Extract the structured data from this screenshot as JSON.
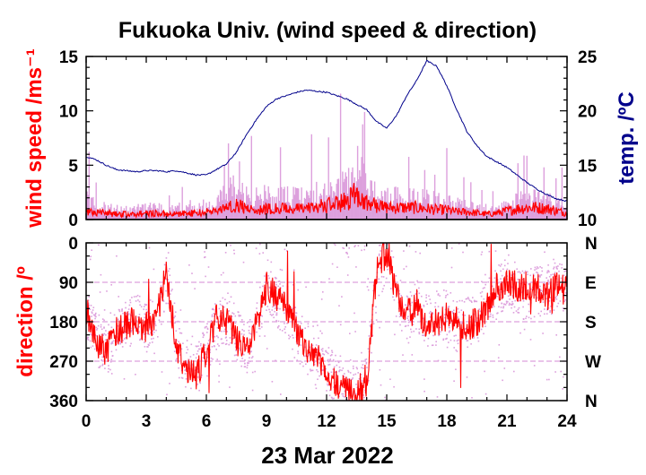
{
  "title": "Fukuoka Univ. (wind speed & direction)",
  "date_label": "23 Mar 2022",
  "colors": {
    "wind_gust": "#dda0dd",
    "wind_mean": "#ff0000",
    "temperature": "#00008b",
    "direction_gust": "#dda0dd",
    "direction_mean": "#ff0000",
    "axis": "#000000"
  },
  "chart_data": [
    {
      "type": "line",
      "panel": "wind-speed-temperature",
      "title": "Fukuoka Univ. (wind speed & direction)",
      "xlabel": "23 Mar 2022",
      "ylabel": "wind speed /ms⁻¹",
      "y2label": "temp. /ºC",
      "xlim": [
        0,
        24
      ],
      "ylim": [
        0,
        15
      ],
      "y2lim": [
        10,
        25
      ],
      "xticks": [
        "0",
        "3",
        "6",
        "9",
        "12",
        "15",
        "18",
        "21",
        "24"
      ],
      "yticks": [
        "0",
        "5",
        "10",
        "15"
      ],
      "y2ticks": [
        "10",
        "15",
        "20",
        "25"
      ],
      "grid": false,
      "series": [
        {
          "key": "temperature",
          "axis": "right",
          "x": [
            0,
            0.5,
            1,
            1.5,
            2,
            2.5,
            3,
            3.5,
            4,
            4.5,
            5,
            5.5,
            6,
            6.5,
            7,
            7.5,
            8,
            8.5,
            9,
            9.5,
            10,
            10.5,
            11,
            11.5,
            12,
            12.5,
            13,
            13.5,
            14,
            14.5,
            15,
            15.5,
            16,
            16.5,
            17,
            17.5,
            18,
            18.5,
            19,
            19.5,
            20,
            20.5,
            21,
            21.5,
            22,
            22.5,
            23,
            23.5,
            24
          ],
          "values": [
            15.8,
            15.5,
            15.0,
            14.6,
            14.5,
            14.4,
            14.5,
            14.5,
            14.4,
            14.5,
            14.3,
            14.1,
            14.1,
            14.6,
            15.1,
            16.2,
            17.8,
            19.2,
            20.4,
            21.1,
            21.4,
            21.7,
            21.9,
            21.8,
            21.7,
            21.4,
            21.1,
            20.6,
            20.1,
            19.0,
            18.4,
            19.6,
            21.4,
            22.8,
            24.6,
            24.1,
            22.3,
            20.1,
            18.1,
            16.8,
            15.8,
            15.3,
            14.8,
            14.1,
            13.4,
            12.8,
            12.3,
            11.9,
            11.7
          ]
        },
        {
          "key": "wind_gust",
          "axis": "left",
          "x": [
            0,
            0.5,
            1,
            1.5,
            2,
            2.5,
            3,
            3.5,
            4,
            4.5,
            5,
            5.5,
            6,
            6.5,
            7,
            7.5,
            8,
            8.5,
            9,
            9.5,
            10,
            10.5,
            11,
            11.5,
            12,
            12.5,
            13,
            13.5,
            14,
            14.5,
            15,
            15.5,
            16,
            16.5,
            17,
            17.5,
            18,
            18.5,
            19,
            19.5,
            20,
            20.5,
            21,
            21.5,
            22,
            22.5,
            23,
            23.5,
            24
          ],
          "values": [
            2.5,
            1.6,
            1.4,
            1.2,
            1.1,
            1.2,
            1.3,
            1.4,
            1.2,
            1.3,
            1.5,
            1.5,
            1.6,
            1.9,
            3.1,
            3.6,
            2.6,
            2.5,
            2.9,
            2.4,
            2.6,
            2.6,
            2.4,
            2.9,
            3.1,
            3.5,
            3.9,
            6.2,
            3.6,
            3.2,
            2.6,
            2.6,
            2.5,
            2.6,
            2.3,
            2.2,
            2.1,
            1.7,
            1.6,
            1.3,
            1.2,
            1.2,
            1.6,
            2.1,
            2.3,
            2.5,
            2.2,
            1.7,
            1.3
          ]
        },
        {
          "key": "wind_mean",
          "axis": "left",
          "x": [
            0,
            0.5,
            1,
            1.5,
            2,
            2.5,
            3,
            3.5,
            4,
            4.5,
            5,
            5.5,
            6,
            6.5,
            7,
            7.5,
            8,
            8.5,
            9,
            9.5,
            10,
            10.5,
            11,
            11.5,
            12,
            12.5,
            13,
            13.5,
            14,
            14.5,
            15,
            15.5,
            16,
            16.5,
            17,
            17.5,
            18,
            18.5,
            19,
            19.5,
            20,
            20.5,
            21,
            21.5,
            22,
            22.5,
            23,
            23.5,
            24
          ],
          "values": [
            0.8,
            0.6,
            0.6,
            0.5,
            0.5,
            0.5,
            0.6,
            0.6,
            0.5,
            0.5,
            0.6,
            0.6,
            0.7,
            0.8,
            1.1,
            1.4,
            1.0,
            0.9,
            1.0,
            1.0,
            1.0,
            1.0,
            1.0,
            1.2,
            1.3,
            1.4,
            1.7,
            2.6,
            1.5,
            1.3,
            1.1,
            1.1,
            1.1,
            1.1,
            1.0,
            0.9,
            0.9,
            0.7,
            0.7,
            0.6,
            0.5,
            0.6,
            0.8,
            1.0,
            1.1,
            1.1,
            1.0,
            0.8,
            0.6
          ]
        }
      ]
    },
    {
      "type": "scatter",
      "panel": "wind-direction",
      "ylabel": "direction /º",
      "xlabel": "23 Mar 2022",
      "xlim": [
        0,
        24
      ],
      "ylim": [
        0,
        360
      ],
      "y_inverted": true,
      "xticks": [
        "0",
        "3",
        "6",
        "9",
        "12",
        "15",
        "18",
        "21",
        "24"
      ],
      "yticks": [
        "0",
        "90",
        "180",
        "270",
        "360"
      ],
      "y2ticks": [
        "N",
        "E",
        "S",
        "W",
        "N"
      ],
      "grid": true,
      "series": [
        {
          "key": "direction_mean",
          "x": [
            0,
            0.5,
            1,
            1.5,
            2,
            2.5,
            3,
            3.5,
            4,
            4.5,
            5,
            5.5,
            6,
            6.5,
            7,
            7.5,
            8,
            8.5,
            9,
            9.5,
            10,
            10.5,
            11,
            11.5,
            12,
            12.5,
            13,
            13.5,
            14,
            14.5,
            15,
            15.5,
            16,
            16.5,
            17,
            17.5,
            18,
            18.5,
            19,
            19.5,
            20,
            20.5,
            21,
            21.5,
            22,
            22.5,
            23,
            23.5,
            24
          ],
          "values": [
            150,
            230,
            250,
            200,
            190,
            170,
            200,
            180,
            60,
            240,
            290,
            300,
            250,
            170,
            180,
            220,
            250,
            190,
            100,
            120,
            150,
            200,
            250,
            260,
            290,
            320,
            340,
            350,
            320,
            60,
            20,
            120,
            160,
            150,
            190,
            180,
            170,
            180,
            190,
            180,
            150,
            100,
            90,
            100,
            110,
            100,
            120,
            100,
            110
          ]
        },
        {
          "key": "direction_gust",
          "x": [
            0,
            0.5,
            1,
            1.5,
            2,
            2.5,
            3,
            3.5,
            4,
            4.5,
            5,
            5.5,
            6,
            6.5,
            7,
            7.5,
            8,
            8.5,
            9,
            9.5,
            10,
            10.5,
            11,
            11.5,
            12,
            12.5,
            13,
            13.5,
            14,
            14.5,
            15,
            15.5,
            16,
            16.5,
            17,
            17.5,
            18,
            18.5,
            19,
            19.5,
            20,
            20.5,
            21,
            21.5,
            22,
            22.5,
            23,
            23.5,
            24
          ],
          "values": [
            160,
            220,
            240,
            210,
            180,
            160,
            190,
            170,
            70,
            230,
            280,
            290,
            240,
            180,
            170,
            210,
            240,
            180,
            90,
            130,
            160,
            210,
            240,
            250,
            280,
            310,
            330,
            340,
            310,
            70,
            30,
            130,
            170,
            140,
            180,
            170,
            160,
            190,
            180,
            170,
            140,
            110,
            80,
            110,
            120,
            110,
            110,
            90,
            120
          ]
        }
      ]
    }
  ]
}
